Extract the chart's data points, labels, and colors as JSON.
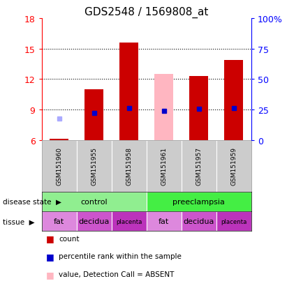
{
  "title": "GDS2548 / 1569808_at",
  "samples": [
    "GSM151960",
    "GSM151955",
    "GSM151958",
    "GSM151961",
    "GSM151957",
    "GSM151959"
  ],
  "bar_heights": [
    6.1,
    11.0,
    15.6,
    6.0,
    12.3,
    13.9
  ],
  "bar_colors": [
    "#cc0000",
    "#cc0000",
    "#cc0000",
    "#cc0000",
    "#cc0000",
    "#cc0000"
  ],
  "absent_value_heights": [
    null,
    null,
    null,
    12.5,
    null,
    null
  ],
  "absent_bar_color": "#ffb6c1",
  "percentile_ranks": [
    null,
    8.7,
    9.15,
    8.9,
    9.05,
    9.15
  ],
  "absent_rank_values": [
    8.1,
    null,
    null,
    null,
    null,
    null
  ],
  "percentile_color": "#0000cc",
  "absent_rank_color": "#aaaaff",
  "ylim": [
    6,
    18
  ],
  "yticks": [
    6,
    9,
    12,
    15,
    18
  ],
  "y2ticks_labels": [
    "0",
    "25",
    "50",
    "75",
    "100%"
  ],
  "y2tick_positions": [
    6,
    9,
    12,
    15,
    18
  ],
  "disease_state_colors": [
    "#90ee90",
    "#44ee44"
  ],
  "tissue_labels": [
    "fat",
    "decidua",
    "placenta",
    "fat",
    "decidua",
    "placenta"
  ],
  "tissue_colors": [
    "#dd88dd",
    "#cc55cc",
    "#bb33bb",
    "#dd88dd",
    "#cc55cc",
    "#bb33bb"
  ],
  "legend_items": [
    {
      "color": "#cc0000",
      "label": "count"
    },
    {
      "color": "#0000cc",
      "label": "percentile rank within the sample"
    },
    {
      "color": "#ffb6c1",
      "label": "value, Detection Call = ABSENT"
    },
    {
      "color": "#aaaaff",
      "label": "rank, Detection Call = ABSENT"
    }
  ],
  "bar_bottom": 6.0,
  "bar_width": 0.55,
  "title_fontsize": 11,
  "tick_fontsize": 9,
  "sample_gray": "#cccccc"
}
